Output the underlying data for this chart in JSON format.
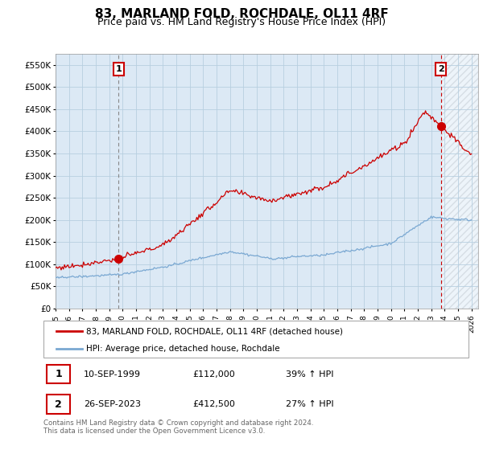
{
  "title": "83, MARLAND FOLD, ROCHDALE, OL11 4RF",
  "subtitle": "Price paid vs. HM Land Registry's House Price Index (HPI)",
  "ytick_vals": [
    0,
    50000,
    100000,
    150000,
    200000,
    250000,
    300000,
    350000,
    400000,
    450000,
    500000,
    550000
  ],
  "ylim": [
    0,
    575000
  ],
  "xmin_year": 1995.0,
  "xmax_year": 2026.5,
  "xtick_years": [
    1995,
    1996,
    1997,
    1998,
    1999,
    2000,
    2001,
    2002,
    2003,
    2004,
    2005,
    2006,
    2007,
    2008,
    2009,
    2010,
    2011,
    2012,
    2013,
    2014,
    2015,
    2016,
    2017,
    2018,
    2019,
    2020,
    2021,
    2022,
    2023,
    2024,
    2025,
    2026
  ],
  "sale1_x": 1999.71,
  "sale1_y": 112000,
  "sale1_label": "1",
  "sale2_x": 2023.73,
  "sale2_y": 412500,
  "sale2_label": "2",
  "red_line_color": "#cc0000",
  "blue_line_color": "#7aa8d2",
  "plot_bg_color": "#dce9f5",
  "marker_color": "#cc0000",
  "vline1_color": "#888888",
  "vline2_color": "#cc0000",
  "annotation_box_color": "#cc0000",
  "legend_red_label": "83, MARLAND FOLD, ROCHDALE, OL11 4RF (detached house)",
  "legend_blue_label": "HPI: Average price, detached house, Rochdale",
  "table_row1": [
    "1",
    "10-SEP-1999",
    "£112,000",
    "39% ↑ HPI"
  ],
  "table_row2": [
    "2",
    "26-SEP-2023",
    "£412,500",
    "27% ↑ HPI"
  ],
  "footnote": "Contains HM Land Registry data © Crown copyright and database right 2024.\nThis data is licensed under the Open Government Licence v3.0.",
  "background_color": "#ffffff",
  "grid_color": "#b8cfe0",
  "title_fontsize": 11,
  "subtitle_fontsize": 9
}
